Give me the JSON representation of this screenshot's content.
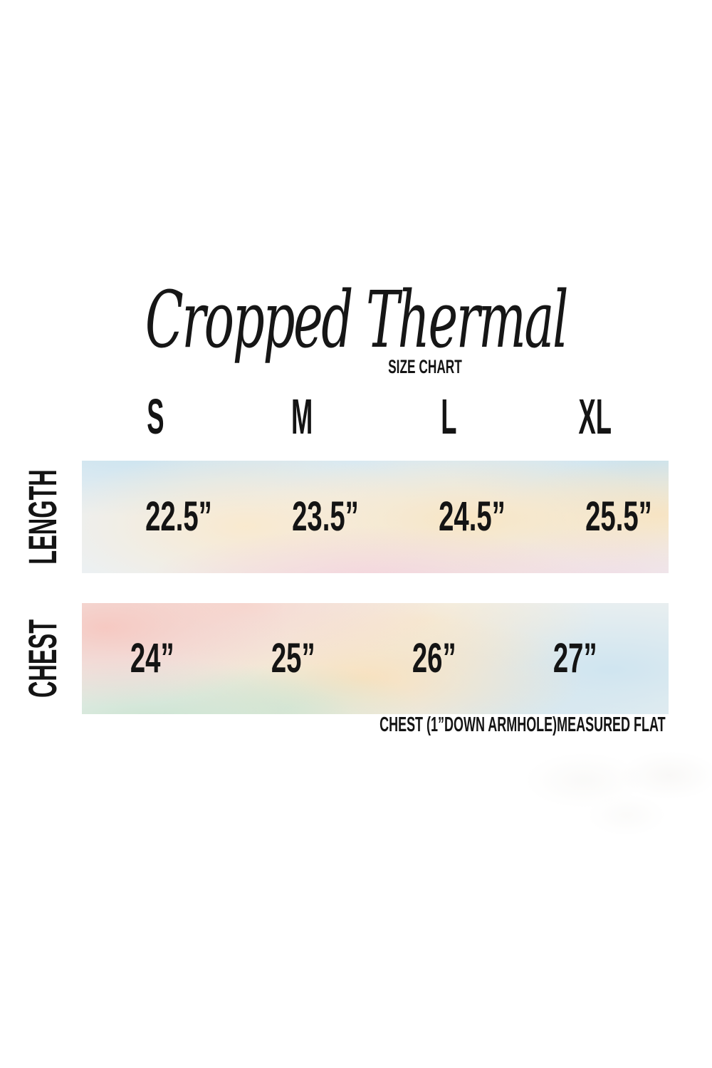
{
  "title": {
    "text": "Cropped Thermal",
    "subtitle": "SIZE CHART"
  },
  "table": {
    "columns": [
      "S",
      "M",
      "L",
      "XL"
    ],
    "rows": [
      {
        "label": "LENGTH",
        "values": [
          "22.5”",
          "23.5”",
          "24.5”",
          "25.5”"
        ]
      },
      {
        "label": "CHEST",
        "values": [
          "24”",
          "25”",
          "26”",
          "27”"
        ]
      }
    ],
    "footnote": "CHEST (1”DOWN ARMHOLE)MEASURED FLAT"
  },
  "chart_data": {
    "type": "table",
    "title": "Cropped Thermal",
    "subtitle": "SIZE CHART",
    "columns": [
      "S",
      "M",
      "L",
      "XL"
    ],
    "rows": [
      {
        "measurement": "LENGTH",
        "values_inches": [
          22.5,
          23.5,
          24.5,
          25.5
        ]
      },
      {
        "measurement": "CHEST",
        "values_inches": [
          24,
          25,
          26,
          27
        ]
      }
    ],
    "footnote": "CHEST (1”DOWN ARMHOLE)MEASURED FLAT",
    "layout": "measurements as rows on pastel watercolor bands, sizes as columns"
  },
  "colors": {
    "text": "#141414",
    "background": "#ffffff",
    "watercolor_blue": "#cde4f0",
    "watercolor_peach": "#fae4be",
    "watercolor_pink": "#f6d0da",
    "watercolor_salmon": "#f6c7c0",
    "watercolor_mint": "#c8e2ce"
  }
}
